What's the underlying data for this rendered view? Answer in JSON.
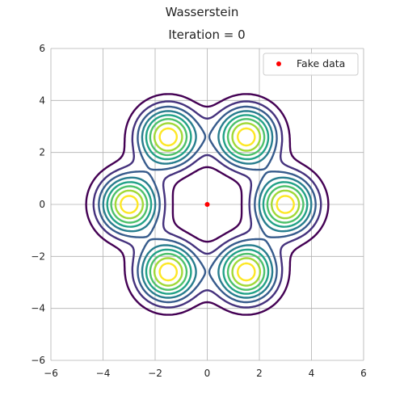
{
  "figure": {
    "suptitle": "Wasserstein",
    "title": "Iteration = 0"
  },
  "chart_data": {
    "type": "contour",
    "title": "Iteration = 0",
    "suptitle": "Wasserstein",
    "xlabel": "",
    "ylabel": "",
    "xlim": [
      -6,
      6
    ],
    "ylim": [
      -6,
      6
    ],
    "xticks": [
      -6,
      -4,
      -2,
      0,
      2,
      4,
      6
    ],
    "yticks": [
      -6,
      -4,
      -2,
      0,
      2,
      4,
      6
    ],
    "grid": true,
    "legend": {
      "position": "top-right",
      "entries": [
        "Fake data"
      ]
    },
    "density": {
      "kind": "gaussian-mixture",
      "centers": [
        [
          3,
          0
        ],
        [
          1.5,
          2.6
        ],
        [
          -1.5,
          2.6
        ],
        [
          -3,
          0
        ],
        [
          -1.5,
          -2.6
        ],
        [
          1.5,
          -2.6
        ]
      ],
      "sigma": 0.8,
      "colormap": "viridis",
      "levels": 8
    },
    "series": [
      {
        "name": "Fake data",
        "type": "scatter",
        "color": "#ff0000",
        "points": [
          [
            0,
            0
          ]
        ]
      }
    ]
  }
}
